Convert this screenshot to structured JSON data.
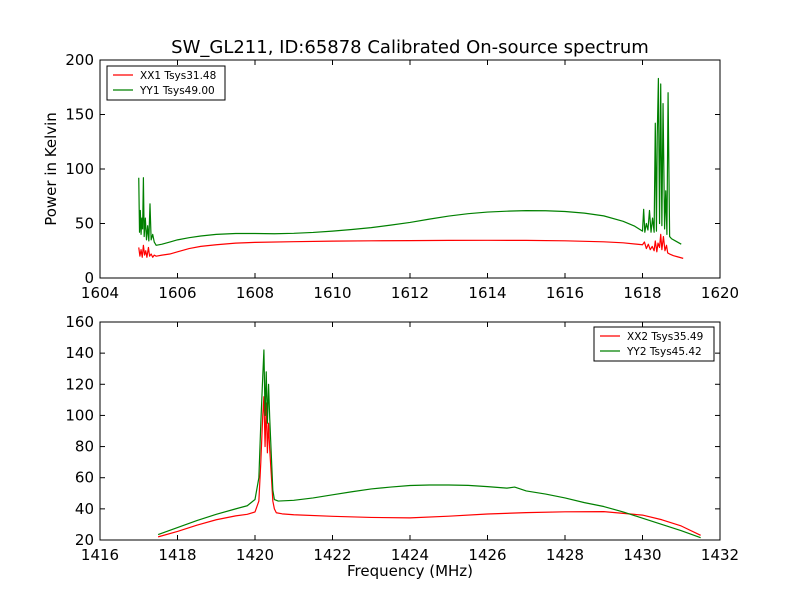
{
  "figure": {
    "title": "SW_GL211, ID:65878 Calibrated On-source spectrum"
  },
  "chart_data": [
    {
      "type": "line",
      "title": "SW_GL211, ID:65878 Calibrated On-source spectrum",
      "xlabel": "",
      "ylabel": "Power in Kelvin",
      "xlim": [
        1604,
        1620
      ],
      "ylim": [
        0,
        200
      ],
      "xticks": [
        1604,
        1606,
        1608,
        1610,
        1612,
        1614,
        1616,
        1618,
        1620
      ],
      "yticks": [
        0,
        50,
        100,
        150,
        200
      ],
      "legend_position": "top-left",
      "series": [
        {
          "name": "XX1 Tsys31.48",
          "color": "#ff0000",
          "points": [
            [
              1605.0,
              28
            ],
            [
              1605.03,
              20
            ],
            [
              1605.06,
              26
            ],
            [
              1605.09,
              19
            ],
            [
              1605.12,
              30
            ],
            [
              1605.15,
              21
            ],
            [
              1605.18,
              25
            ],
            [
              1605.21,
              19
            ],
            [
              1605.25,
              28
            ],
            [
              1605.28,
              20
            ],
            [
              1605.32,
              22
            ],
            [
              1605.36,
              19
            ],
            [
              1605.4,
              21
            ],
            [
              1605.45,
              20
            ],
            [
              1605.6,
              21
            ],
            [
              1605.8,
              22
            ],
            [
              1606.0,
              24
            ],
            [
              1606.3,
              27
            ],
            [
              1606.6,
              29
            ],
            [
              1607.0,
              30.5
            ],
            [
              1607.5,
              32
            ],
            [
              1608.0,
              32.7
            ],
            [
              1609.0,
              33.3
            ],
            [
              1610.0,
              33.8
            ],
            [
              1611.0,
              34.1
            ],
            [
              1612.0,
              34.3
            ],
            [
              1613.0,
              34.5
            ],
            [
              1614.0,
              34.6
            ],
            [
              1615.0,
              34.5
            ],
            [
              1616.0,
              34.1
            ],
            [
              1617.0,
              33.2
            ],
            [
              1617.5,
              32.3
            ],
            [
              1618.0,
              30.5
            ],
            [
              1618.05,
              33
            ],
            [
              1618.1,
              27
            ],
            [
              1618.15,
              31
            ],
            [
              1618.2,
              26
            ],
            [
              1618.25,
              29
            ],
            [
              1618.3,
              25
            ],
            [
              1618.33,
              34
            ],
            [
              1618.37,
              24
            ],
            [
              1618.4,
              32
            ],
            [
              1618.44,
              28
            ],
            [
              1618.47,
              40
            ],
            [
              1618.5,
              26
            ],
            [
              1618.54,
              38
            ],
            [
              1618.58,
              25
            ],
            [
              1618.62,
              30
            ],
            [
              1618.65,
              23
            ],
            [
              1618.7,
              22
            ],
            [
              1618.8,
              20.5
            ],
            [
              1618.9,
              19.5
            ],
            [
              1619.05,
              18
            ]
          ]
        },
        {
          "name": "YY1 Tsys49.00",
          "color": "#008000",
          "points": [
            [
              1605.0,
              92
            ],
            [
              1605.02,
              42
            ],
            [
              1605.04,
              62
            ],
            [
              1605.06,
              40
            ],
            [
              1605.08,
              55
            ],
            [
              1605.1,
              45
            ],
            [
              1605.12,
              92
            ],
            [
              1605.14,
              38
            ],
            [
              1605.17,
              55
            ],
            [
              1605.2,
              35
            ],
            [
              1605.23,
              48
            ],
            [
              1605.26,
              34
            ],
            [
              1605.29,
              68
            ],
            [
              1605.32,
              35
            ],
            [
              1605.36,
              40
            ],
            [
              1605.4,
              33
            ],
            [
              1605.45,
              30
            ],
            [
              1605.6,
              31
            ],
            [
              1605.8,
              33
            ],
            [
              1606.0,
              35
            ],
            [
              1606.3,
              37
            ],
            [
              1606.6,
              38.5
            ],
            [
              1607.0,
              40
            ],
            [
              1607.5,
              40.8
            ],
            [
              1608.0,
              40.8
            ],
            [
              1608.5,
              40.6
            ],
            [
              1609.0,
              41
            ],
            [
              1609.5,
              41.8
            ],
            [
              1610.0,
              43
            ],
            [
              1610.5,
              44.5
            ],
            [
              1611.0,
              46.2
            ],
            [
              1611.5,
              48.5
            ],
            [
              1612.0,
              51
            ],
            [
              1612.5,
              54
            ],
            [
              1613.0,
              56.8
            ],
            [
              1613.5,
              59
            ],
            [
              1614.0,
              60.5
            ],
            [
              1614.5,
              61.3
            ],
            [
              1615.0,
              61.8
            ],
            [
              1615.5,
              61.7
            ],
            [
              1616.0,
              61
            ],
            [
              1616.5,
              59.5
            ],
            [
              1617.0,
              57
            ],
            [
              1617.5,
              52
            ],
            [
              1617.8,
              47.5
            ],
            [
              1618.0,
              43
            ],
            [
              1618.03,
              63
            ],
            [
              1618.06,
              42
            ],
            [
              1618.1,
              50
            ],
            [
              1618.14,
              44
            ],
            [
              1618.18,
              62
            ],
            [
              1618.22,
              42
            ],
            [
              1618.26,
              55
            ],
            [
              1618.3,
              42
            ],
            [
              1618.33,
              142
            ],
            [
              1618.36,
              43
            ],
            [
              1618.38,
              130
            ],
            [
              1618.41,
              183
            ],
            [
              1618.44,
              50
            ],
            [
              1618.47,
              178
            ],
            [
              1618.5,
              48
            ],
            [
              1618.53,
              160
            ],
            [
              1618.57,
              45
            ],
            [
              1618.6,
              80
            ],
            [
              1618.63,
              40
            ],
            [
              1618.66,
              170
            ],
            [
              1618.7,
              38
            ],
            [
              1618.75,
              36
            ],
            [
              1618.85,
              34
            ],
            [
              1619.0,
              31
            ]
          ]
        }
      ]
    },
    {
      "type": "line",
      "title": "",
      "xlabel": "Frequency (MHz)",
      "ylabel": "",
      "xlim": [
        1416,
        1432
      ],
      "ylim": [
        20,
        160
      ],
      "xticks": [
        1416,
        1418,
        1420,
        1422,
        1424,
        1426,
        1428,
        1430,
        1432
      ],
      "yticks": [
        20,
        40,
        60,
        80,
        100,
        120,
        140,
        160
      ],
      "legend_position": "top-right",
      "series": [
        {
          "name": "XX2 Tsys35.49",
          "color": "#ff0000",
          "points": [
            [
              1417.5,
              22
            ],
            [
              1418.0,
              25.5
            ],
            [
              1418.5,
              29.5
            ],
            [
              1419.0,
              33
            ],
            [
              1419.5,
              35.5
            ],
            [
              1419.8,
              36.5
            ],
            [
              1420.0,
              38
            ],
            [
              1420.1,
              45
            ],
            [
              1420.15,
              70
            ],
            [
              1420.2,
              100
            ],
            [
              1420.23,
              112
            ],
            [
              1420.26,
              80
            ],
            [
              1420.29,
              108
            ],
            [
              1420.32,
              76
            ],
            [
              1420.35,
              95
            ],
            [
              1420.38,
              78
            ],
            [
              1420.42,
              62
            ],
            [
              1420.46,
              45
            ],
            [
              1420.5,
              40
            ],
            [
              1420.55,
              37.5
            ],
            [
              1420.7,
              36.8
            ],
            [
              1421.0,
              36.2
            ],
            [
              1422.0,
              35.2
            ],
            [
              1423.0,
              34.5
            ],
            [
              1424.0,
              34.2
            ],
            [
              1425.0,
              35.3
            ],
            [
              1426.0,
              36.7
            ],
            [
              1427.0,
              37.6
            ],
            [
              1428.0,
              38.1
            ],
            [
              1429.0,
              38.2
            ],
            [
              1430.0,
              36
            ],
            [
              1430.5,
              33
            ],
            [
              1431.0,
              29
            ],
            [
              1431.5,
              23
            ]
          ]
        },
        {
          "name": "YY2 Tsys45.42",
          "color": "#008000",
          "points": [
            [
              1417.5,
              23.5
            ],
            [
              1418.0,
              28
            ],
            [
              1418.5,
              32.5
            ],
            [
              1419.0,
              36.5
            ],
            [
              1419.5,
              40
            ],
            [
              1419.8,
              42
            ],
            [
              1420.0,
              46
            ],
            [
              1420.1,
              60
            ],
            [
              1420.15,
              95
            ],
            [
              1420.2,
              125
            ],
            [
              1420.23,
              142
            ],
            [
              1420.26,
              100
            ],
            [
              1420.29,
              128
            ],
            [
              1420.32,
              95
            ],
            [
              1420.35,
              120
            ],
            [
              1420.38,
              98
            ],
            [
              1420.42,
              75
            ],
            [
              1420.46,
              52
            ],
            [
              1420.5,
              46
            ],
            [
              1420.6,
              45
            ],
            [
              1421.0,
              45.5
            ],
            [
              1421.5,
              47
            ],
            [
              1422.0,
              49
            ],
            [
              1422.5,
              51
            ],
            [
              1423.0,
              52.8
            ],
            [
              1423.5,
              54
            ],
            [
              1424.0,
              55
            ],
            [
              1424.5,
              55.3
            ],
            [
              1425.0,
              55.3
            ],
            [
              1425.5,
              55.1
            ],
            [
              1426.0,
              54.3
            ],
            [
              1426.5,
              53.3
            ],
            [
              1426.7,
              54
            ],
            [
              1427.0,
              51.5
            ],
            [
              1427.5,
              49.5
            ],
            [
              1428.0,
              47
            ],
            [
              1428.5,
              44
            ],
            [
              1429.0,
              41.5
            ],
            [
              1429.5,
              38
            ],
            [
              1430.0,
              34
            ],
            [
              1430.5,
              30
            ],
            [
              1431.0,
              26
            ],
            [
              1431.5,
              21.5
            ]
          ]
        }
      ]
    }
  ]
}
